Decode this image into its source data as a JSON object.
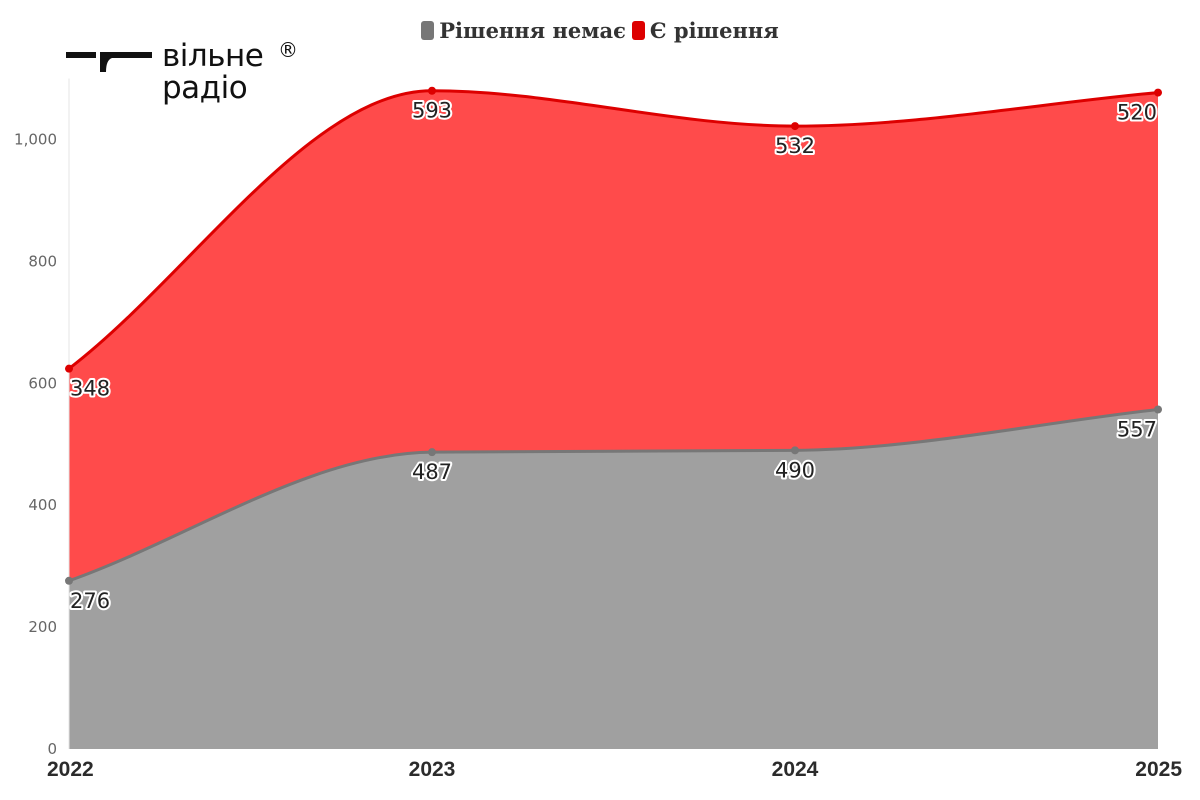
{
  "logo": {
    "line1": "вільне",
    "line2": "радіо",
    "reg": "®"
  },
  "chart_data": {
    "type": "area",
    "stacked": true,
    "x": [
      "2022",
      "2023",
      "2024",
      "2025"
    ],
    "series": [
      {
        "name": "Рішення немає",
        "values": [
          276,
          487,
          490,
          557
        ],
        "color": "#a0a0a0",
        "line_color": "#777777"
      },
      {
        "name": "Є рішення",
        "values": [
          348,
          593,
          532,
          520
        ],
        "color": "#ff4b4b",
        "line_color": "#dd0000"
      }
    ],
    "y_ticks": [
      "0",
      "200",
      "400",
      "600",
      "800",
      "1,000"
    ],
    "ylim": [
      0,
      1100
    ],
    "legend_position": "top-center",
    "grid": false,
    "title": "",
    "xlabel": "",
    "ylabel": ""
  }
}
